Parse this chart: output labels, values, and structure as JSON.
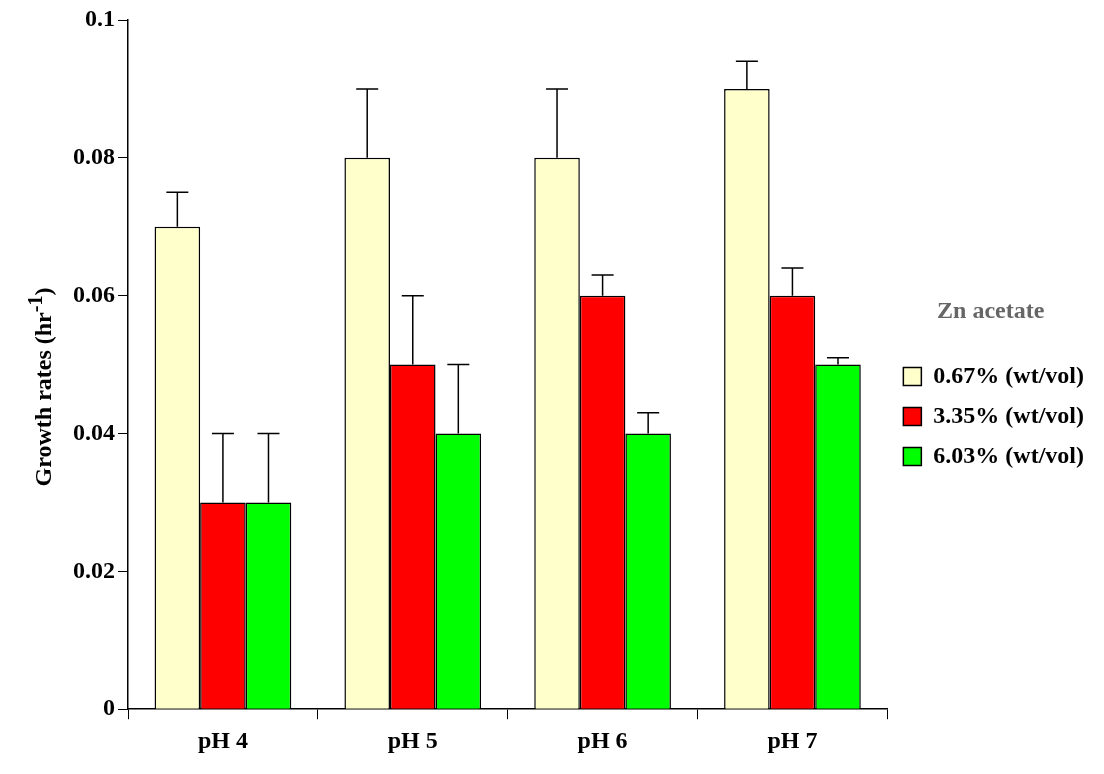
{
  "chart_data": {
    "type": "bar",
    "ylabel": "Growth rates (hr$^{-1}$)",
    "legend_title": "Zn acetate",
    "legend": "right",
    "grid": false,
    "categories": [
      "pH 4",
      "pH 5",
      "pH 6",
      "pH 7"
    ],
    "ylim": [
      0,
      0.1
    ],
    "yticks": [
      0,
      0.02,
      0.04,
      0.06,
      0.08,
      0.1
    ],
    "series": [
      {
        "name": "0.67% (wt/vol)",
        "color": "#ffffcc",
        "values": [
          0.07,
          0.08,
          0.08,
          0.09
        ],
        "errors": [
          [
            0.07,
            0.075
          ],
          [
            0.08,
            0.09
          ],
          [
            0.08,
            0.09
          ],
          [
            0.09,
            0.094
          ]
        ]
      },
      {
        "name": "3.35% (wt/vol)",
        "color": "#ff0000",
        "values": [
          0.03,
          0.05,
          0.06,
          0.06
        ],
        "errors": [
          [
            0.03,
            0.04
          ],
          [
            0.05,
            0.06
          ],
          [
            0.06,
            0.063
          ],
          [
            0.06,
            0.064
          ]
        ]
      },
      {
        "name": "6.03% (wt/vol)",
        "color": "#00ff00",
        "values": [
          0.03,
          0.04,
          0.04,
          0.05
        ],
        "errors": [
          [
            0.03,
            0.04
          ],
          [
            0.04,
            0.05
          ],
          [
            0.04,
            0.043
          ],
          [
            0.05,
            0.051
          ]
        ]
      }
    ]
  }
}
